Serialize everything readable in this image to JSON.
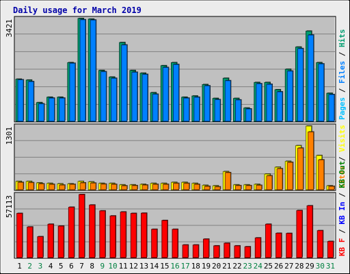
{
  "title": "Daily usage for March 2019",
  "colors": {
    "background": "#ececec",
    "panel": "#c0c0c0",
    "grid": "#808080",
    "title": "#0000a8",
    "pages": "#00c0ff",
    "files": "#0080ff",
    "hits": "#009d70",
    "visits": "#ffff00",
    "sites": "#ff8000",
    "kbin": "#0000ff",
    "kbout": "#008000",
    "kbf": "#ff0000",
    "weekday_label": "#000000",
    "weekend_label": "#008040"
  },
  "days": [
    "1",
    "2",
    "3",
    "4",
    "5",
    "6",
    "7",
    "8",
    "9",
    "10",
    "11",
    "12",
    "13",
    "14",
    "15",
    "16",
    "17",
    "18",
    "19",
    "20",
    "21",
    "22",
    "23",
    "24",
    "25",
    "26",
    "27",
    "28",
    "29",
    "30",
    "31"
  ],
  "weekend_days": [
    "2",
    "3",
    "9",
    "10",
    "16",
    "17",
    "23",
    "24",
    "30",
    "31"
  ],
  "chart_data": [
    {
      "type": "bar",
      "panel": "hits",
      "ymax_label": "3421",
      "ylim": [
        0,
        3421
      ],
      "side_labels": [
        "Pages",
        "Files",
        "Hits"
      ],
      "series": [
        {
          "name": "Hits",
          "values": [
            1400,
            1370,
            620,
            800,
            800,
            1950,
            3421,
            3400,
            1690,
            1470,
            2620,
            1690,
            1600,
            950,
            1850,
            1950,
            800,
            840,
            1220,
            760,
            1430,
            760,
            440,
            1290,
            1290,
            1050,
            1730,
            2470,
            3000,
            1950,
            930
          ]
        },
        {
          "name": "Files",
          "values": [
            1380,
            1320,
            580,
            770,
            770,
            1930,
            3380,
            3370,
            1650,
            1430,
            2540,
            1630,
            1560,
            900,
            1790,
            1890,
            770,
            800,
            1180,
            720,
            1350,
            710,
            410,
            1250,
            1230,
            980,
            1670,
            2420,
            2870,
            1910,
            890
          ]
        },
        {
          "name": "Pages",
          "values": [
            0,
            0,
            0,
            0,
            0,
            0,
            0,
            0,
            0,
            0,
            0,
            0,
            0,
            0,
            0,
            0,
            0,
            0,
            0,
            0,
            0,
            0,
            0,
            0,
            0,
            0,
            0,
            0,
            0,
            0,
            0
          ]
        }
      ]
    },
    {
      "type": "bar",
      "panel": "visits",
      "ymax_label": "1301",
      "ylim": [
        0,
        1301
      ],
      "side_labels": [
        "Sites",
        "Visits"
      ],
      "series": [
        {
          "name": "Visits",
          "values": [
            170,
            170,
            140,
            130,
            120,
            120,
            170,
            160,
            130,
            130,
            100,
            100,
            110,
            130,
            130,
            150,
            150,
            130,
            90,
            80,
            370,
            100,
            100,
            110,
            320,
            460,
            580,
            900,
            1301,
            700,
            80
          ]
        },
        {
          "name": "Sites",
          "values": [
            150,
            145,
            120,
            110,
            95,
            110,
            140,
            135,
            115,
            110,
            80,
            85,
            95,
            110,
            110,
            130,
            130,
            110,
            70,
            60,
            350,
            85,
            85,
            90,
            285,
            430,
            560,
            850,
            1180,
            610,
            70
          ]
        }
      ]
    },
    {
      "type": "bar",
      "panel": "kbytes",
      "ymax_label": "57113",
      "ylim": [
        0,
        57113
      ],
      "side_labels": [
        "KB F",
        "KB In",
        "KB Out"
      ],
      "series": [
        {
          "name": "KB F",
          "values": [
            40000,
            27700,
            18900,
            30200,
            28500,
            45600,
            57113,
            47600,
            42300,
            37700,
            41300,
            40000,
            40200,
            25600,
            33600,
            25600,
            11400,
            11400,
            16700,
            10600,
            13000,
            10600,
            9800,
            17800,
            30200,
            22000,
            21900,
            42600,
            46900,
            24400,
            14600
          ]
        },
        {
          "name": "KB In",
          "values": [
            0,
            0,
            0,
            0,
            0,
            0,
            0,
            0,
            0,
            0,
            0,
            0,
            0,
            0,
            0,
            0,
            0,
            0,
            0,
            0,
            0,
            0,
            0,
            0,
            0,
            0,
            0,
            0,
            0,
            0,
            0
          ]
        },
        {
          "name": "KB Out",
          "values": [
            0,
            0,
            0,
            0,
            0,
            0,
            0,
            0,
            0,
            0,
            0,
            0,
            0,
            0,
            0,
            0,
            0,
            0,
            0,
            0,
            0,
            0,
            0,
            0,
            0,
            0,
            0,
            0,
            0,
            0,
            0
          ]
        }
      ]
    }
  ]
}
